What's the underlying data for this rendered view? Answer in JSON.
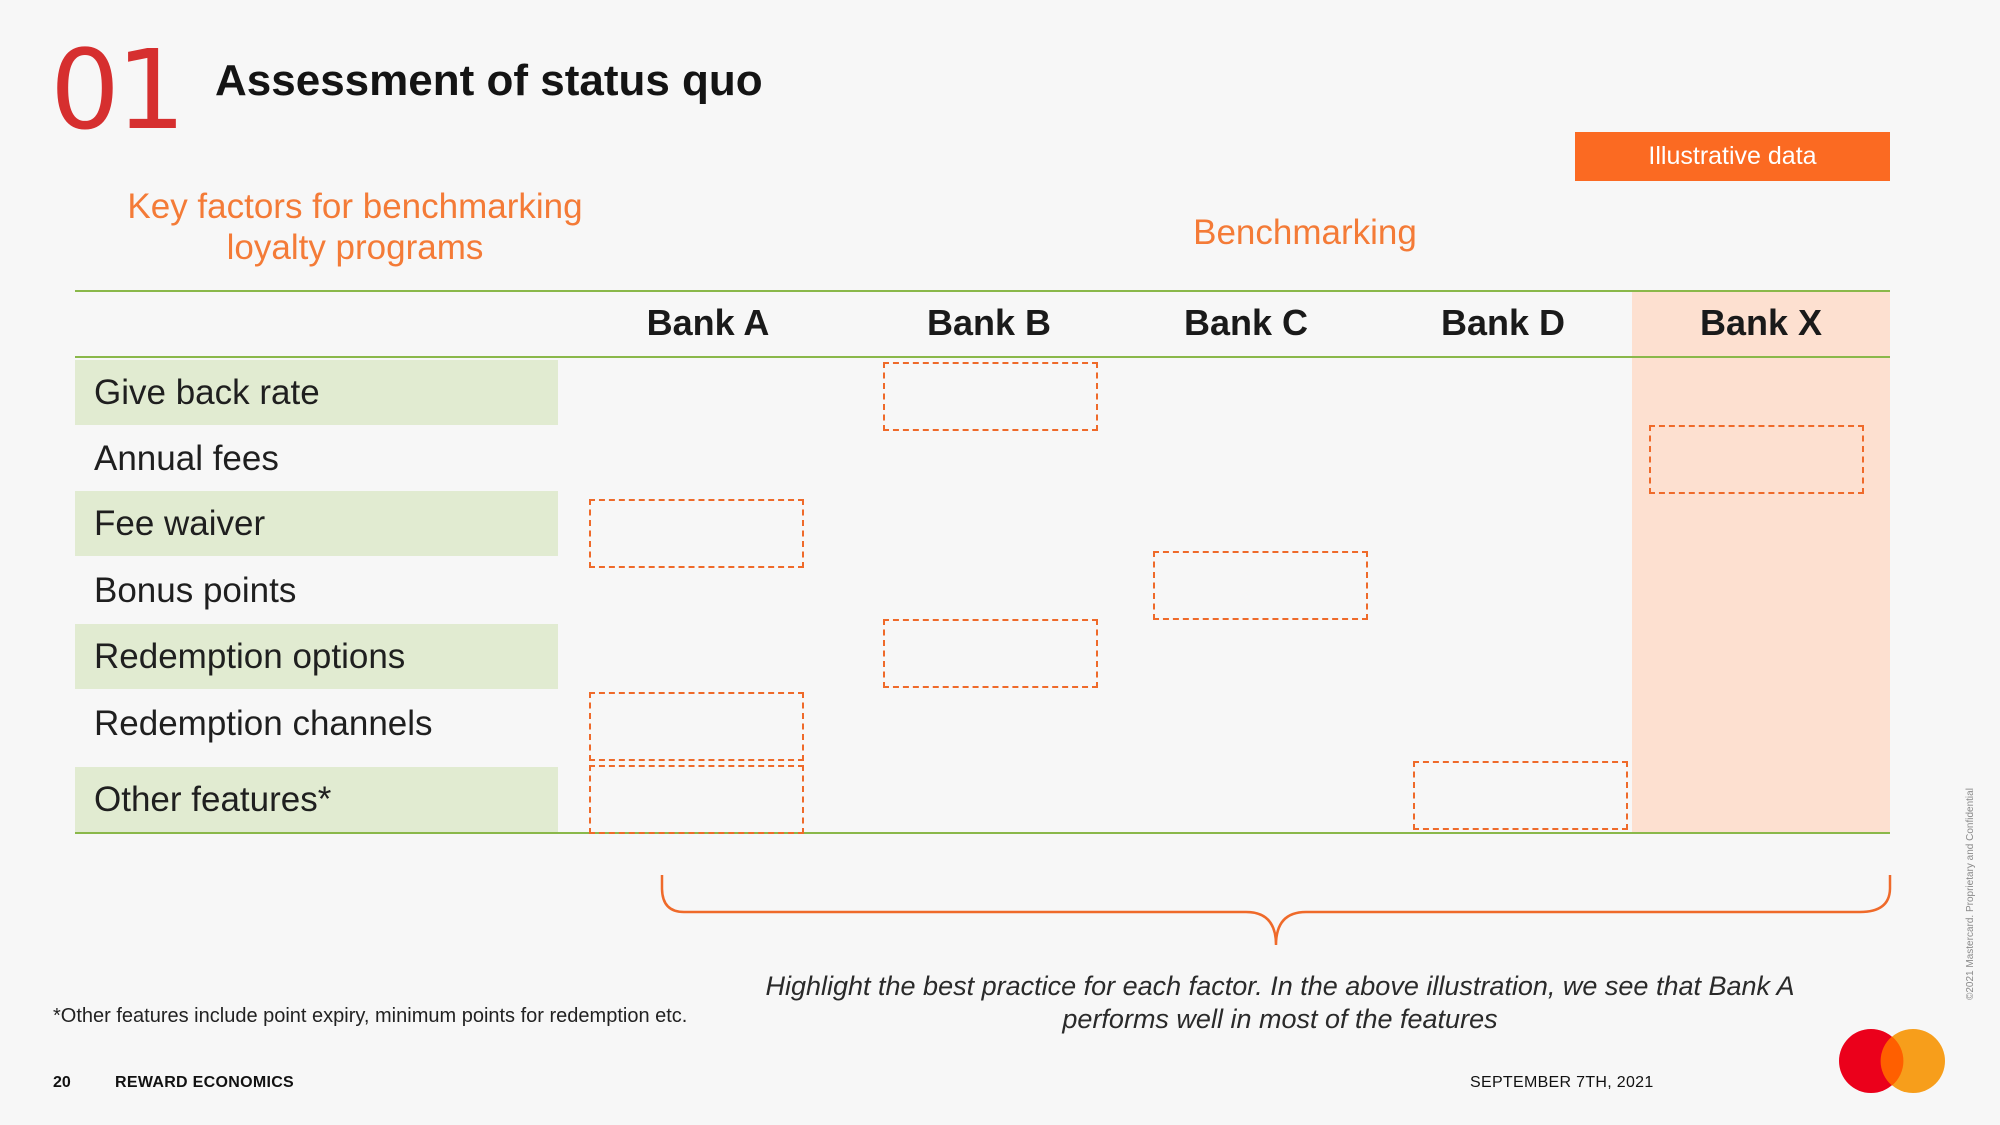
{
  "header": {
    "section_number": "01",
    "title": "Assessment of status quo",
    "badge": "Illustrative data"
  },
  "headings": {
    "factors": "Key factors for benchmarking loyalty programs",
    "benchmarking": "Benchmarking"
  },
  "table": {
    "banks": [
      "Bank A",
      "Bank B",
      "Bank C",
      "Bank D",
      "Bank X"
    ],
    "factors": [
      "Give back rate",
      "Annual fees",
      "Fee waiver",
      "Bonus points",
      "Redemption options",
      "Redemption channels",
      "Other features*"
    ],
    "highlighted_column": "Bank X",
    "best_practice_marks": [
      {
        "factor": "Give back rate",
        "bank": "Bank B"
      },
      {
        "factor": "Annual fees",
        "bank": "Bank X"
      },
      {
        "factor": "Fee waiver",
        "bank": "Bank A"
      },
      {
        "factor": "Bonus points",
        "bank": "Bank C"
      },
      {
        "factor": "Redemption options",
        "bank": "Bank B"
      },
      {
        "factor": "Redemption channels",
        "bank": "Bank A"
      },
      {
        "factor": "Other features*",
        "bank": "Bank A"
      },
      {
        "factor": "Other features*",
        "bank": "Bank D"
      }
    ]
  },
  "insight": "Highlight the best practice for each factor. In the above illustration, we see that Bank A performs well in most of the features",
  "footnote": "*Other features include point expiry, minimum points for redemption etc.",
  "footer": {
    "page_number": "20",
    "title": "REWARD ECONOMICS",
    "date": "SEPTEMBER 7TH, 2021",
    "copyright": "©2021 Mastercard. Proprietary and Confidential"
  },
  "colors": {
    "accent_red": "#d62f2f",
    "accent_orange": "#fb6a22",
    "rule_green": "#8ab84a",
    "factor_shade": "#e1ebd1",
    "bankx_shade": "#fde0d0"
  },
  "icons": [
    "mastercard-logo-icon"
  ]
}
